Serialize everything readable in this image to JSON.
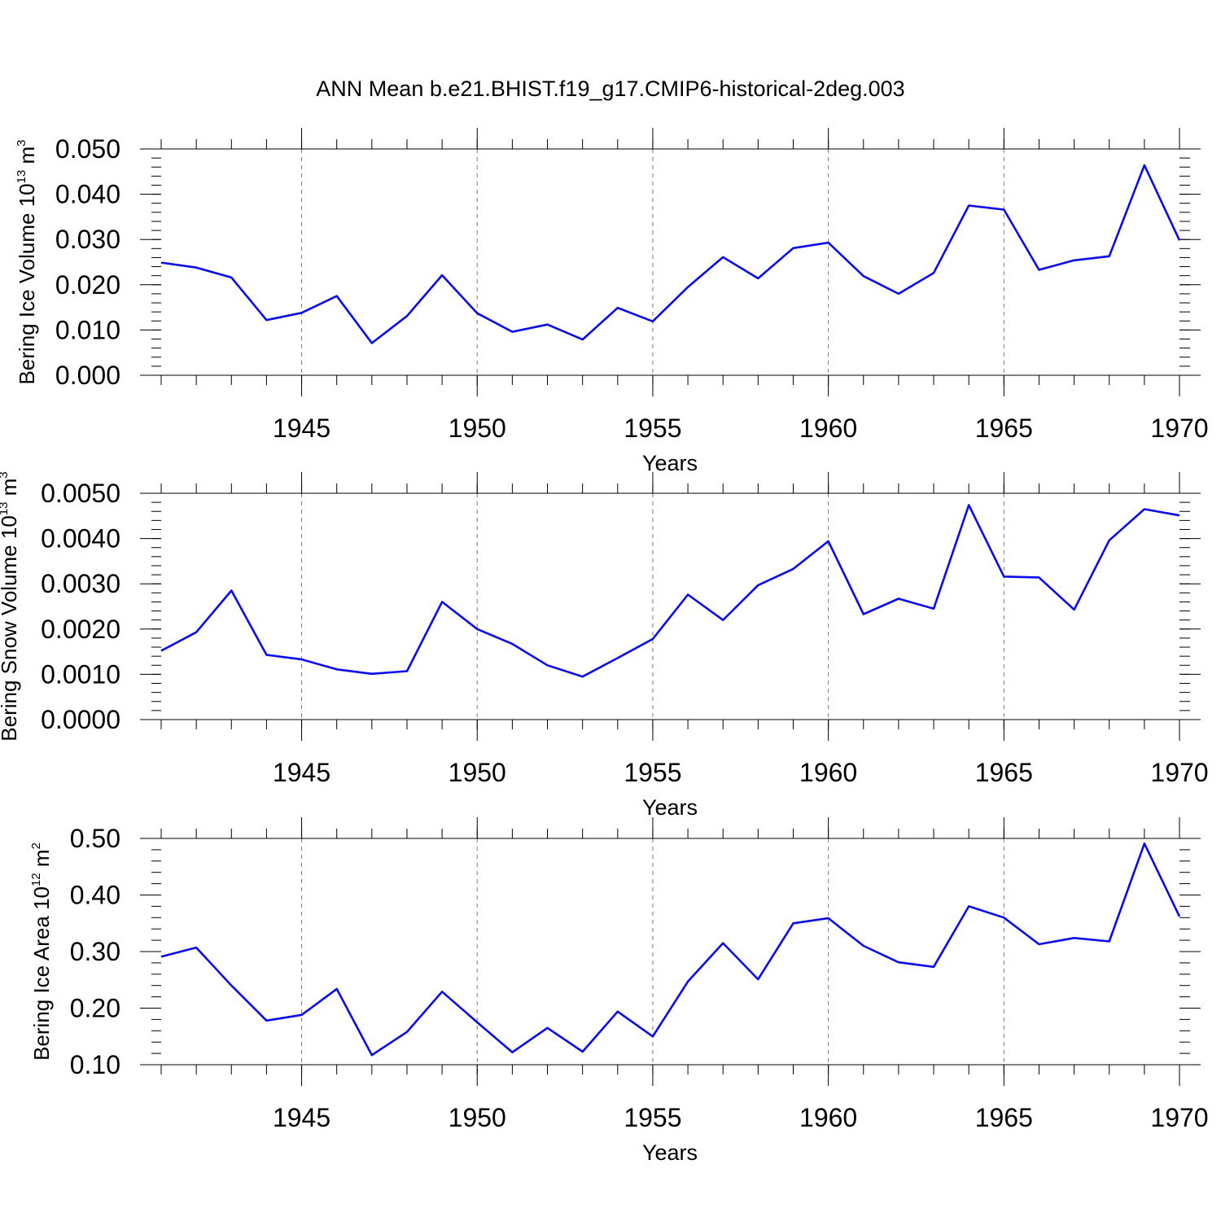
{
  "title": "ANN Mean b.e21.BHIST.f19_g17.CMIP6-historical-2deg.003",
  "colors": {
    "line": "#0a0af0",
    "axis": "#000000",
    "grid": "#7a7a7a"
  },
  "chart_data": [
    {
      "type": "line",
      "series": [
        {
          "name": "Bering Ice Volume",
          "values": [
            0.0249,
            0.0238,
            0.0216,
            0.0122,
            0.0138,
            0.0175,
            0.0071,
            0.0131,
            0.0221,
            0.0137,
            0.0096,
            0.0112,
            0.0079,
            0.0149,
            0.0119,
            0.0195,
            0.0261,
            0.0214,
            0.0281,
            0.0293,
            0.0219,
            0.018,
            0.0226,
            0.0375,
            0.0366,
            0.0233,
            0.0254,
            0.0263,
            0.0464,
            0.0298
          ]
        }
      ],
      "x": [
        1941,
        1942,
        1943,
        1944,
        1945,
        1946,
        1947,
        1948,
        1949,
        1950,
        1951,
        1952,
        1953,
        1954,
        1955,
        1956,
        1957,
        1958,
        1959,
        1960,
        1961,
        1962,
        1963,
        1964,
        1965,
        1966,
        1967,
        1968,
        1969,
        1970
      ],
      "xlim": [
        1941,
        1970
      ],
      "ylim": [
        0.0,
        0.05
      ],
      "xticks": [
        1945,
        1950,
        1955,
        1960,
        1965,
        1970
      ],
      "xtick_labels": [
        "1945",
        "1950",
        "1955",
        "1960",
        "1965",
        "1970"
      ],
      "yticks": [
        0.0,
        0.01,
        0.02,
        0.03,
        0.04,
        0.05
      ],
      "ytick_labels": [
        "0.000",
        "0.010",
        "0.020",
        "0.030",
        "0.040",
        "0.050"
      ],
      "xlabel": "Years",
      "ylabel": "Bering Ice Volume 10",
      "ylabel_exp": "13",
      "ylabel_unit": "m",
      "ylabel_unit_exp": "3",
      "grid": "vertical dashed at major x ticks"
    },
    {
      "type": "line",
      "series": [
        {
          "name": "Bering Snow Volume",
          "values": [
            0.00152,
            0.00193,
            0.00285,
            0.00143,
            0.00133,
            0.00111,
            0.00101,
            0.00107,
            0.0026,
            0.002,
            0.00167,
            0.0012,
            0.00095,
            0.00136,
            0.00178,
            0.00276,
            0.0022,
            0.00297,
            0.00333,
            0.00394,
            0.00233,
            0.00267,
            0.00245,
            0.00474,
            0.00316,
            0.00314,
            0.00243,
            0.00396,
            0.00465,
            0.00451
          ]
        }
      ],
      "x": [
        1941,
        1942,
        1943,
        1944,
        1945,
        1946,
        1947,
        1948,
        1949,
        1950,
        1951,
        1952,
        1953,
        1954,
        1955,
        1956,
        1957,
        1958,
        1959,
        1960,
        1961,
        1962,
        1963,
        1964,
        1965,
        1966,
        1967,
        1968,
        1969,
        1970
      ],
      "xlim": [
        1941,
        1970
      ],
      "ylim": [
        0.0,
        0.005
      ],
      "xticks": [
        1945,
        1950,
        1955,
        1960,
        1965,
        1970
      ],
      "xtick_labels": [
        "1945",
        "1950",
        "1955",
        "1960",
        "1965",
        "1970"
      ],
      "yticks": [
        0.0,
        0.001,
        0.002,
        0.003,
        0.004,
        0.005
      ],
      "ytick_labels": [
        "0.0000",
        "0.0010",
        "0.0020",
        "0.0030",
        "0.0040",
        "0.0050"
      ],
      "xlabel": "Years",
      "ylabel": "Bering Snow Volume 10",
      "ylabel_exp": "13",
      "ylabel_unit": "m",
      "ylabel_unit_exp": "3",
      "grid": "vertical dashed at major x ticks"
    },
    {
      "type": "line",
      "series": [
        {
          "name": "Bering Ice Area",
          "values": [
            0.291,
            0.307,
            0.24,
            0.178,
            0.188,
            0.234,
            0.117,
            0.158,
            0.229,
            0.175,
            0.122,
            0.165,
            0.123,
            0.194,
            0.15,
            0.247,
            0.315,
            0.251,
            0.35,
            0.359,
            0.31,
            0.281,
            0.273,
            0.38,
            0.36,
            0.313,
            0.324,
            0.318,
            0.491,
            0.362
          ]
        }
      ],
      "x": [
        1941,
        1942,
        1943,
        1944,
        1945,
        1946,
        1947,
        1948,
        1949,
        1950,
        1951,
        1952,
        1953,
        1954,
        1955,
        1956,
        1957,
        1958,
        1959,
        1960,
        1961,
        1962,
        1963,
        1964,
        1965,
        1966,
        1967,
        1968,
        1969,
        1970
      ],
      "xlim": [
        1941,
        1970
      ],
      "ylim": [
        0.1,
        0.5
      ],
      "xticks": [
        1945,
        1950,
        1955,
        1960,
        1965,
        1970
      ],
      "xtick_labels": [
        "1945",
        "1950",
        "1955",
        "1960",
        "1965",
        "1970"
      ],
      "yticks": [
        0.1,
        0.2,
        0.3,
        0.4,
        0.5
      ],
      "ytick_labels": [
        "0.10",
        "0.20",
        "0.30",
        "0.40",
        "0.50"
      ],
      "xlabel": "Years",
      "ylabel": "Bering Ice Area 10",
      "ylabel_exp": "12",
      "ylabel_unit": "m",
      "ylabel_unit_exp": "2",
      "grid": "vertical dashed at major x ticks"
    }
  ]
}
